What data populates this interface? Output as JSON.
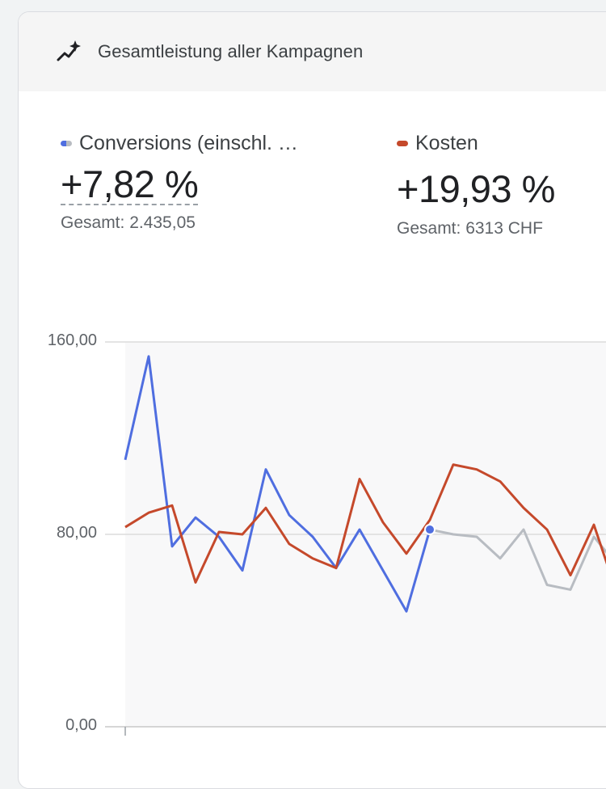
{
  "header": {
    "title": "Gesamtleistung aller Kampagnen",
    "icon": "trending-up-sparkle-icon"
  },
  "metrics": [
    {
      "label": "Conversions (einschl. …",
      "change": "+7,82 %",
      "total": "Gesamt: 2.435,05",
      "color": "#4f6ee0"
    },
    {
      "label": "Kosten",
      "change": "+19,93 %",
      "total": "Gesamt: 6313 CHF",
      "color": "#c5492b"
    }
  ],
  "chart_data": {
    "type": "line",
    "y_ticks": [
      "160,00",
      "80,00",
      "0,00"
    ],
    "ylim": [
      0,
      160
    ],
    "grid": true,
    "series": [
      {
        "name": "Conversions (einschl. …",
        "color": "#4f6ee0",
        "values": [
          111,
          154,
          75,
          87,
          79,
          65,
          107,
          88,
          79,
          66,
          82,
          65,
          48,
          82
        ]
      },
      {
        "name": "Conversions (einschl. …) comparison",
        "color": "#b8bcc2",
        "values": [
          null,
          null,
          null,
          null,
          null,
          null,
          null,
          null,
          null,
          null,
          null,
          null,
          null,
          82,
          80,
          79,
          70,
          82,
          59,
          57,
          79,
          67
        ]
      },
      {
        "name": "Kosten",
        "color": "#c5492b",
        "values": [
          83,
          89,
          92,
          60,
          81,
          80,
          91,
          76,
          70,
          66,
          103,
          85,
          72,
          86,
          109,
          107,
          102,
          91,
          82,
          63,
          84,
          55
        ]
      }
    ]
  }
}
